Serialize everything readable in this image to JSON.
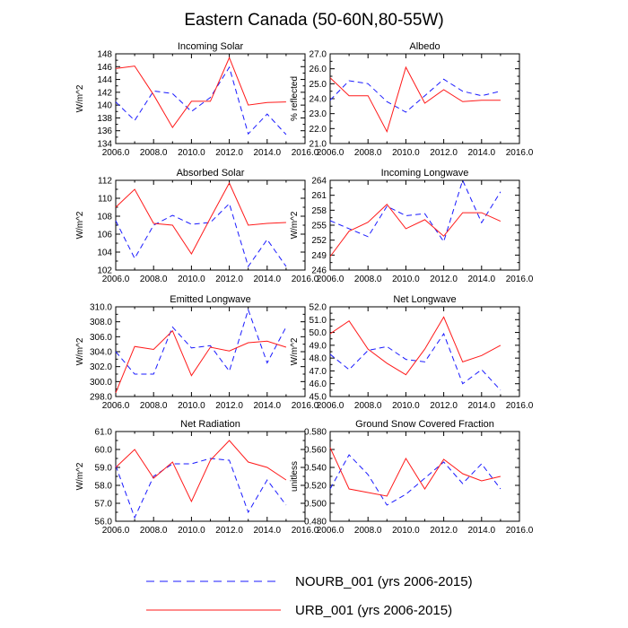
{
  "title": "Eastern Canada (50-60N,80-55W)",
  "colors": {
    "nourb": "#1a1aff",
    "urb": "#ff1a1a",
    "axis": "#000000"
  },
  "legend": {
    "nourb_label": "NOURB_001 (yrs 2006-2015)",
    "urb_label": "URB_001 (yrs 2006-2015)"
  },
  "chart_data": [
    {
      "type": "line",
      "title": "Incoming Solar",
      "ylabel": "W/m^2",
      "x": [
        2006,
        2007,
        2008,
        2009,
        2010,
        2011,
        2012,
        2013,
        2014,
        2015
      ],
      "xlim": [
        2006,
        2016
      ],
      "xticks": [
        2006,
        2008,
        2010,
        2012,
        2014,
        2016
      ],
      "xtick_labels": [
        "2006.0",
        "2008.0",
        "2010.0",
        "2012.0",
        "2014.0",
        "2016.0"
      ],
      "ylim": [
        134,
        148
      ],
      "yticks": [
        134,
        136,
        138,
        140,
        142,
        144,
        146,
        148
      ],
      "ytick_labels": [
        "134",
        "136",
        "138",
        "140",
        "142",
        "144",
        "146",
        "148"
      ],
      "series": [
        {
          "name": "NOURB_001",
          "style": "dashed",
          "values": [
            140.5,
            137.6,
            142.2,
            141.8,
            139.0,
            141.2,
            145.9,
            135.5,
            138.6,
            135.4
          ]
        },
        {
          "name": "URB_001",
          "style": "solid",
          "values": [
            145.7,
            146.1,
            141.6,
            136.5,
            140.6,
            140.6,
            147.4,
            140.0,
            140.4,
            140.5
          ]
        }
      ]
    },
    {
      "type": "line",
      "title": "Albedo",
      "ylabel": "% reflected",
      "x": [
        2006,
        2007,
        2008,
        2009,
        2010,
        2011,
        2012,
        2013,
        2014,
        2015
      ],
      "xlim": [
        2006,
        2016
      ],
      "xticks": [
        2006,
        2008,
        2010,
        2012,
        2014,
        2016
      ],
      "xtick_labels": [
        "2006.0",
        "2008.0",
        "2010.0",
        "2012.0",
        "2014.0",
        "2016.0"
      ],
      "ylim": [
        21,
        27
      ],
      "yticks": [
        21,
        22,
        23,
        24,
        25,
        26,
        27
      ],
      "ytick_labels": [
        "21.0",
        "22.0",
        "23.0",
        "24.0",
        "25.0",
        "26.0",
        "27.0"
      ],
      "series": [
        {
          "name": "NOURB_001",
          "style": "dashed",
          "values": [
            23.9,
            25.2,
            25.0,
            23.8,
            23.1,
            24.2,
            25.3,
            24.5,
            24.2,
            24.5
          ]
        },
        {
          "name": "URB_001",
          "style": "solid",
          "values": [
            25.4,
            24.2,
            24.2,
            21.8,
            26.1,
            23.7,
            24.6,
            23.8,
            23.9,
            23.9
          ]
        }
      ]
    },
    {
      "type": "line",
      "title": "Absorbed Solar",
      "ylabel": "W/m^2",
      "x": [
        2006,
        2007,
        2008,
        2009,
        2010,
        2011,
        2012,
        2013,
        2014,
        2015
      ],
      "xlim": [
        2006,
        2016
      ],
      "xticks": [
        2006,
        2008,
        2010,
        2012,
        2014,
        2016
      ],
      "xtick_labels": [
        "2006.0",
        "2008.0",
        "2010.0",
        "2012.0",
        "2014.0",
        "2016.0"
      ],
      "ylim": [
        102,
        112
      ],
      "yticks": [
        102,
        104,
        106,
        108,
        110,
        112
      ],
      "ytick_labels": [
        "102",
        "104",
        "106",
        "108",
        "110",
        "112"
      ],
      "series": [
        {
          "name": "NOURB_001",
          "style": "dashed",
          "values": [
            107.5,
            103.3,
            107.0,
            108.1,
            107.1,
            107.3,
            109.4,
            102.4,
            105.4,
            102.4
          ]
        },
        {
          "name": "URB_001",
          "style": "solid",
          "values": [
            109.0,
            111.0,
            107.2,
            107.0,
            103.8,
            107.8,
            111.7,
            107.0,
            107.2,
            107.3
          ]
        }
      ]
    },
    {
      "type": "line",
      "title": "Incoming Longwave",
      "ylabel": "W/m^2",
      "x": [
        2006,
        2007,
        2008,
        2009,
        2010,
        2011,
        2012,
        2013,
        2014,
        2015
      ],
      "xlim": [
        2006,
        2016
      ],
      "xticks": [
        2006,
        2008,
        2010,
        2012,
        2014,
        2016
      ],
      "xtick_labels": [
        "2006.0",
        "2008.0",
        "2010.0",
        "2012.0",
        "2014.0",
        "2016.0"
      ],
      "ylim": [
        246,
        264
      ],
      "yticks": [
        246,
        249,
        252,
        255,
        258,
        261,
        264
      ],
      "ytick_labels": [
        "246",
        "249",
        "252",
        "255",
        "258",
        "261",
        "264"
      ],
      "series": [
        {
          "name": "NOURB_001",
          "style": "dashed",
          "values": [
            255.9,
            254.3,
            252.7,
            258.8,
            256.9,
            257.3,
            251.7,
            264.0,
            255.5,
            261.7
          ]
        },
        {
          "name": "URB_001",
          "style": "solid",
          "values": [
            248.7,
            253.8,
            255.6,
            259.2,
            254.3,
            256.1,
            252.8,
            257.5,
            257.5,
            255.8
          ]
        }
      ]
    },
    {
      "type": "line",
      "title": "Emitted Longwave",
      "ylabel": "W/m^2",
      "x": [
        2006,
        2007,
        2008,
        2009,
        2010,
        2011,
        2012,
        2013,
        2014,
        2015
      ],
      "xlim": [
        2006,
        2016
      ],
      "xticks": [
        2006,
        2008,
        2010,
        2012,
        2014,
        2016
      ],
      "xtick_labels": [
        "2006.0",
        "2008.0",
        "2010.0",
        "2012.0",
        "2014.0",
        "2016.0"
      ],
      "ylim": [
        298,
        310
      ],
      "yticks": [
        298,
        300,
        302,
        304,
        306,
        308,
        310
      ],
      "ytick_labels": [
        "298.0",
        "300.0",
        "302.0",
        "304.0",
        "306.0",
        "308.0",
        "310.0"
      ],
      "series": [
        {
          "name": "NOURB_001",
          "style": "dashed",
          "values": [
            304.0,
            301.0,
            301.0,
            307.3,
            304.5,
            304.8,
            301.4,
            309.6,
            302.5,
            307.3
          ]
        },
        {
          "name": "URB_001",
          "style": "solid",
          "values": [
            298.5,
            304.7,
            304.3,
            306.8,
            300.8,
            304.6,
            304.1,
            305.2,
            305.4,
            304.6
          ]
        }
      ]
    },
    {
      "type": "line",
      "title": "Net Longwave",
      "ylabel": "W/m^2",
      "x": [
        2006,
        2007,
        2008,
        2009,
        2010,
        2011,
        2012,
        2013,
        2014,
        2015
      ],
      "xlim": [
        2006,
        2016
      ],
      "xticks": [
        2006,
        2008,
        2010,
        2012,
        2014,
        2016
      ],
      "xtick_labels": [
        "2006.0",
        "2008.0",
        "2010.0",
        "2012.0",
        "2014.0",
        "2016.0"
      ],
      "ylim": [
        45,
        52
      ],
      "yticks": [
        45,
        46,
        47,
        48,
        49,
        50,
        51,
        52
      ],
      "ytick_labels": [
        "45.0",
        "46.0",
        "47.0",
        "48.0",
        "49.0",
        "50.0",
        "51.0",
        "52.0"
      ],
      "series": [
        {
          "name": "NOURB_001",
          "style": "dashed",
          "values": [
            48.3,
            47.1,
            48.6,
            48.9,
            47.9,
            47.7,
            49.9,
            46.0,
            47.1,
            45.5
          ]
        },
        {
          "name": "URB_001",
          "style": "solid",
          "values": [
            49.9,
            50.9,
            48.7,
            47.6,
            46.7,
            48.7,
            51.2,
            47.7,
            48.2,
            49.0
          ]
        }
      ]
    },
    {
      "type": "line",
      "title": "Net Radiation",
      "ylabel": "W/m^2",
      "x": [
        2006,
        2007,
        2008,
        2009,
        2010,
        2011,
        2012,
        2013,
        2014,
        2015
      ],
      "xlim": [
        2006,
        2016
      ],
      "xticks": [
        2006,
        2008,
        2010,
        2012,
        2014,
        2016
      ],
      "xtick_labels": [
        "2006.0",
        "2008.0",
        "2010.0",
        "2012.0",
        "2014.0",
        "2016.0"
      ],
      "ylim": [
        56,
        61
      ],
      "yticks": [
        56,
        57,
        58,
        59,
        60,
        61
      ],
      "ytick_labels": [
        "56.0",
        "57.0",
        "58.0",
        "59.0",
        "60.0",
        "61.0"
      ],
      "series": [
        {
          "name": "NOURB_001",
          "style": "dashed",
          "values": [
            59.1,
            56.2,
            58.5,
            59.2,
            59.2,
            59.5,
            59.4,
            56.5,
            58.3,
            56.9
          ]
        },
        {
          "name": "URB_001",
          "style": "solid",
          "values": [
            59.0,
            60.0,
            58.4,
            59.3,
            57.1,
            59.4,
            60.5,
            59.3,
            59.0,
            58.3
          ]
        }
      ]
    },
    {
      "type": "line",
      "title": "Ground Snow Covered Fraction",
      "ylabel": "unitless",
      "x": [
        2006,
        2007,
        2008,
        2009,
        2010,
        2011,
        2012,
        2013,
        2014,
        2015
      ],
      "xlim": [
        2006,
        2016
      ],
      "xticks": [
        2006,
        2008,
        2010,
        2012,
        2014,
        2016
      ],
      "xtick_labels": [
        "2006.0",
        "2008.0",
        "2010.0",
        "2012.0",
        "2014.0",
        "2016.0"
      ],
      "ylim": [
        0.48,
        0.58
      ],
      "yticks": [
        0.48,
        0.5,
        0.52,
        0.54,
        0.56,
        0.58
      ],
      "ytick_labels": [
        "0.480",
        "0.500",
        "0.520",
        "0.540",
        "0.560",
        "0.580"
      ],
      "series": [
        {
          "name": "NOURB_001",
          "style": "dashed",
          "values": [
            0.516,
            0.554,
            0.532,
            0.498,
            0.51,
            0.528,
            0.546,
            0.522,
            0.544,
            0.516
          ]
        },
        {
          "name": "URB_001",
          "style": "solid",
          "values": [
            0.562,
            0.516,
            0.512,
            0.508,
            0.55,
            0.516,
            0.549,
            0.533,
            0.525,
            0.53
          ]
        }
      ]
    }
  ]
}
